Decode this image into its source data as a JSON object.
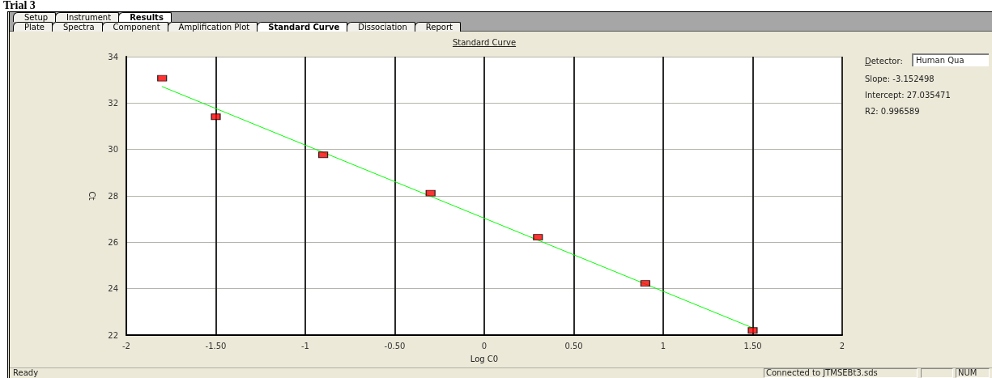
{
  "chart_data": {
    "type": "scatter",
    "title": "Standard Curve",
    "xlabel": "Log C0",
    "ylabel": "Ct",
    "annotations": [
      "Trial 3",
      "Setup",
      "Instrument",
      "Results",
      "Plate",
      "Spectra",
      "Component",
      "Amplification Plot",
      "Standard Curve",
      "Dissociation",
      "Report",
      "Detector:",
      "Human Qua",
      "Slope: -3.152498",
      "Intercept: 27.035471",
      "R2: 0.996589",
      "Ready",
      "Connected to JTMSEBt3.sds",
      "NUM"
    ],
    "xlim": [
      -2,
      2
    ],
    "xticks": [
      -2,
      {
        "value": -1.5,
        "label": "-1.50"
      },
      -1,
      {
        "value": -0.5,
        "label": "-0.50"
      },
      0,
      {
        "value": 0.5,
        "label": "0.50"
      },
      1,
      {
        "value": 1.5,
        "label": "1.50"
      },
      2
    ],
    "ylim": [
      22,
      34
    ],
    "yticks": [
      22,
      24,
      26,
      28,
      30,
      32,
      34
    ],
    "grid": true,
    "marker": "square",
    "series": [
      {
        "color": "#ff0000",
        "x": [
          -1.8,
          -1.5,
          -0.9,
          -0.3,
          0.3,
          0.9,
          1.5
        ],
        "values": [
          33.07,
          31.41,
          29.77,
          28.12,
          26.22,
          24.23,
          22.2
        ]
      },
      {
        "type": "line",
        "color": "#00ff00",
        "marker": "none",
        "line_style": "solid",
        "x": [
          -1.8,
          1.5
        ],
        "values": [
          32.71,
          22.31
        ]
      }
    ]
  }
}
